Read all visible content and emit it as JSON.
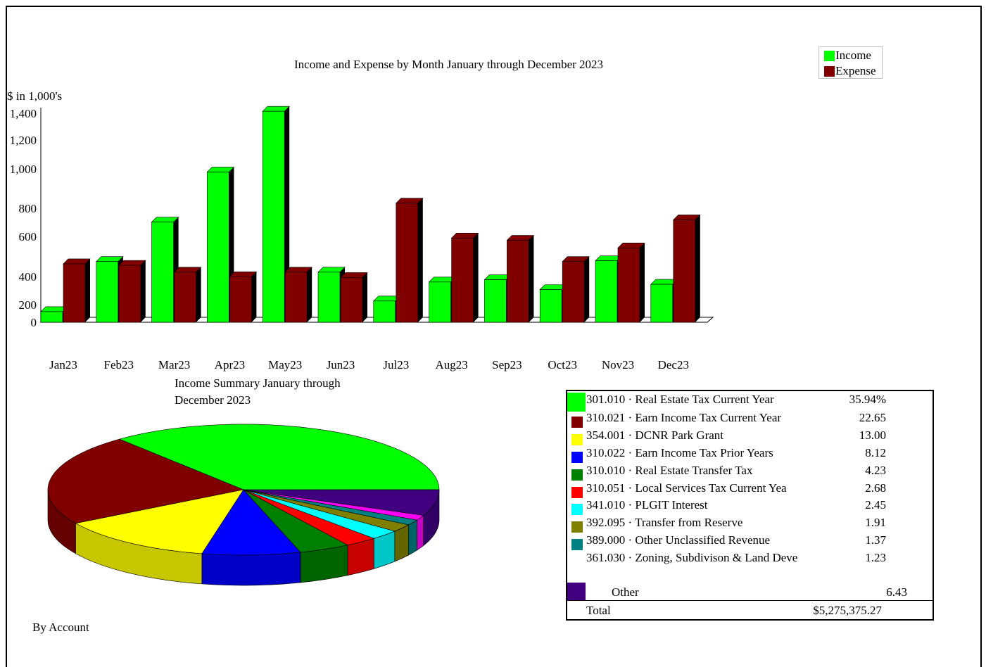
{
  "colors": {
    "income": "#00ff00",
    "expense": "#800000"
  },
  "chart_data": [
    {
      "type": "bar",
      "title": "Income and Expense by Month January through December 2023",
      "ylabel": "$ in 1,000's",
      "ylim": [
        0,
        1400
      ],
      "yticks": [
        "0",
        "200",
        "400",
        "600",
        "800",
        "1,000",
        "1,200",
        "1,400"
      ],
      "categories": [
        "Jan23",
        "Feb23",
        "Mar23",
        "Apr23",
        "May23",
        "Jun23",
        "Jul23",
        "Aug23",
        "Sep23",
        "Oct23",
        "Nov23",
        "Dec23"
      ],
      "legend_position": "top-right",
      "series": [
        {
          "name": "Income",
          "color": "#00ff00",
          "values": [
            70,
            400,
            660,
            990,
            1390,
            330,
            140,
            265,
            280,
            215,
            405,
            250
          ]
        },
        {
          "name": "Expense",
          "color": "#800000",
          "values": [
            385,
            375,
            330,
            300,
            330,
            295,
            785,
            555,
            540,
            400,
            490,
            675
          ]
        }
      ]
    },
    {
      "type": "pie",
      "title": "Income Summary January through December 2023",
      "subtitle": "By Account",
      "slices": [
        {
          "label": "301.010 · Real Estate Tax Current Year",
          "value": "35.94%",
          "pct": 35.94,
          "color": "#00ff00"
        },
        {
          "label": "310.021 · Earn Income Tax Current Year",
          "value": "22.65",
          "pct": 22.65,
          "color": "#800000"
        },
        {
          "label": "354.001 · DCNR Park Grant",
          "value": "13.00",
          "pct": 13.0,
          "color": "#ffff00"
        },
        {
          "label": "310.022 · Earn Income Tax Prior Years",
          "value": "8.12",
          "pct": 8.12,
          "color": "#0000ff"
        },
        {
          "label": "310.010 · Real Estate Transfer Tax",
          "value": "4.23",
          "pct": 4.23,
          "color": "#008000"
        },
        {
          "label": "310.051 · Local Services Tax Current Yea",
          "value": "2.68",
          "pct": 2.68,
          "color": "#ff0000"
        },
        {
          "label": "341.010 · PLGIT Interest",
          "value": "2.45",
          "pct": 2.45,
          "color": "#00ffff"
        },
        {
          "label": "392.095 · Transfer from Reserve",
          "value": "1.91",
          "pct": 1.91,
          "color": "#808000"
        },
        {
          "label": "389.000 · Other Unclassified Revenue",
          "value": "1.37",
          "pct": 1.37,
          "color": "#008080"
        },
        {
          "label": "361.030 · Zoning, Subdivison & Land Deve",
          "value": "1.23",
          "pct": 1.23,
          "color": "#ff00ff"
        },
        {
          "label": "Other",
          "value": "6.43",
          "pct": 6.43,
          "color": "#400080"
        }
      ],
      "total_label": "Total",
      "total_value": "$5,275,375.27"
    }
  ]
}
